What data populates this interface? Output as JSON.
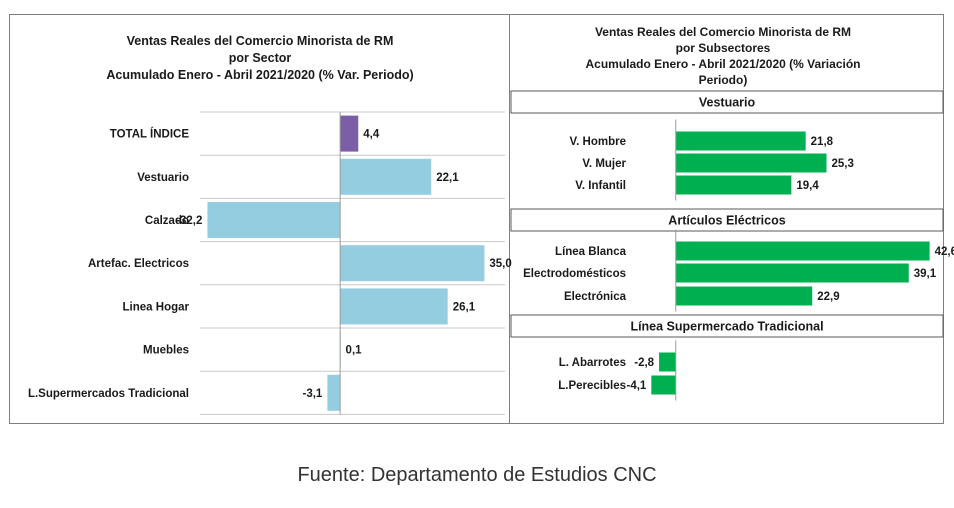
{
  "colors": {
    "highlight": "#7a5ea6",
    "bar_left": "#95cde0",
    "bar_right": "#00b050",
    "grid": "#c9c9c9",
    "axis": "#9a9a9a"
  },
  "chart_data": [
    {
      "type": "bar",
      "orientation": "horizontal",
      "title": [
        "Ventas Reales del Comercio Minorista de RM",
        "por Sector",
        "Acumulado Enero - Abril 2021/2020 (% Var. Periodo)"
      ],
      "categories": [
        "TOTAL ÍNDICE",
        "Vestuario",
        "Calzado",
        "Artefac. Electricos",
        "Linea Hogar",
        "Muebles",
        "L.Supermercados Tradicional"
      ],
      "values": [
        4.4,
        22.1,
        -32.2,
        35.0,
        26.1,
        0.1,
        -3.1
      ],
      "value_labels": [
        "4,4",
        "22,1",
        "-32,2",
        "35,0",
        "26,1",
        "0,1",
        "-3,1"
      ],
      "highlight_index": 0,
      "xlim": [
        -34,
        40
      ],
      "grid": true,
      "legend": "none"
    },
    {
      "type": "bar",
      "orientation": "horizontal",
      "title": [
        "Ventas Reales del Comercio Minorista de RM",
        "por Subsectores",
        "Acumulado Enero - Abril 2021/2020 (% Variación",
        "Periodo)"
      ],
      "xlim": [
        -6,
        43
      ],
      "legend": "none",
      "groups": [
        {
          "name": "Vestuario",
          "categories": [
            "V. Hombre",
            "V. Mujer",
            "V. Infantil"
          ],
          "values": [
            21.8,
            25.3,
            19.4
          ],
          "value_labels": [
            "21,8",
            "25,3",
            "19,4"
          ]
        },
        {
          "name": "Artículos Eléctricos",
          "categories": [
            "Línea Blanca",
            "Electrodomésticos",
            "Electrónica"
          ],
          "values": [
            42.6,
            39.1,
            22.9
          ],
          "value_labels": [
            "42,6",
            "39,1",
            "22,9"
          ]
        },
        {
          "name": "Línea  Supermercado Tradicional",
          "categories": [
            "L. Abarrotes",
            "L.Perecibles"
          ],
          "values": [
            -2.8,
            -4.1
          ],
          "value_labels": [
            "-2,8",
            "-4,1"
          ]
        }
      ]
    }
  ],
  "source": "Fuente: Departamento de Estudios CNC"
}
